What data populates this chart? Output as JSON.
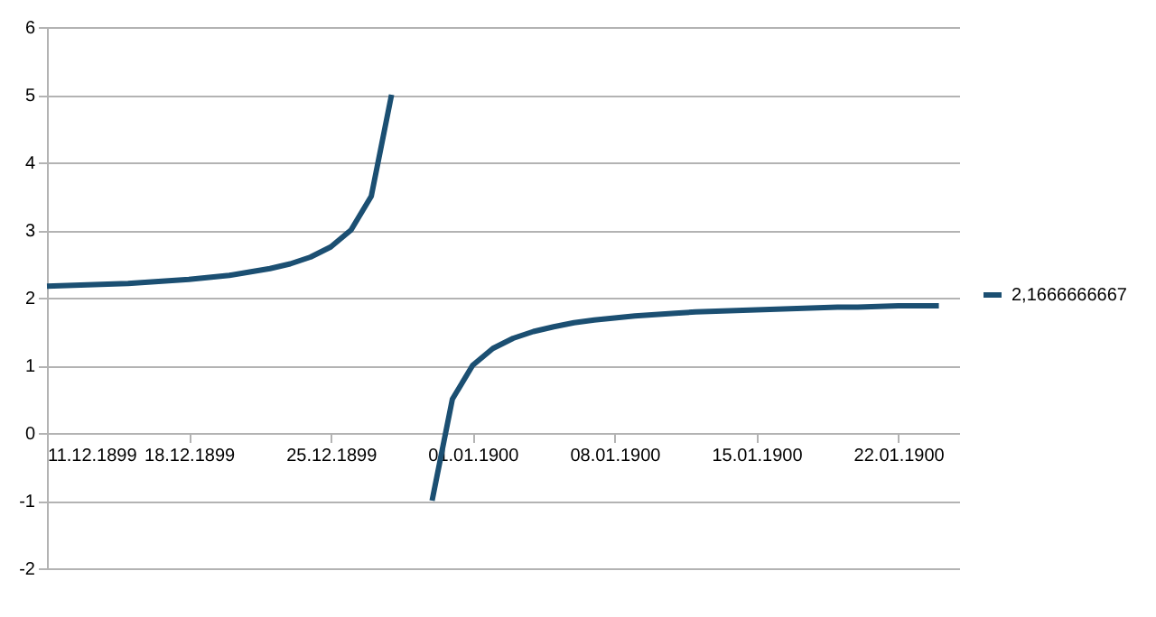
{
  "chart_data": {
    "type": "line",
    "x": [
      "1899-12-11",
      "1899-12-12",
      "1899-12-13",
      "1899-12-14",
      "1899-12-15",
      "1899-12-16",
      "1899-12-17",
      "1899-12-18",
      "1899-12-19",
      "1899-12-20",
      "1899-12-21",
      "1899-12-22",
      "1899-12-23",
      "1899-12-24",
      "1899-12-25",
      "1899-12-26",
      "1899-12-27",
      "1899-12-28",
      "1899-12-29",
      "1899-12-30",
      "1899-12-31",
      "1900-01-01",
      "1900-01-02",
      "1900-01-03",
      "1900-01-04",
      "1900-01-05",
      "1900-01-06",
      "1900-01-07",
      "1900-01-08",
      "1900-01-09",
      "1900-01-10",
      "1900-01-11",
      "1900-01-12",
      "1900-01-13",
      "1900-01-14",
      "1900-01-15",
      "1900-01-16",
      "1900-01-17",
      "1900-01-18",
      "1900-01-19",
      "1900-01-20",
      "1900-01-21",
      "1900-01-22",
      "1900-01-23",
      "1900-01-24"
    ],
    "series": [
      {
        "name": "2,1666666667",
        "color": "#1b4f72",
        "values": [
          2.17,
          2.18,
          2.19,
          2.2,
          2.21,
          2.23,
          2.25,
          2.27,
          2.3,
          2.33,
          2.38,
          2.43,
          2.5,
          2.6,
          2.75,
          3,
          3.5,
          5,
          null,
          -1,
          0.5,
          1,
          1.25,
          1.4,
          1.5,
          1.57,
          1.63,
          1.67,
          1.7,
          1.73,
          1.75,
          1.77,
          1.79,
          1.8,
          1.81,
          1.82,
          1.83,
          1.84,
          1.85,
          1.86,
          1.86,
          1.87,
          1.88,
          1.88,
          1.88
        ]
      }
    ],
    "xlim": [
      "1899-12-11",
      "1900-01-25"
    ],
    "xticks": [
      {
        "value": "1899-12-11",
        "label": "11.12.1899"
      },
      {
        "value": "1899-12-18",
        "label": "18.12.1899"
      },
      {
        "value": "1899-12-25",
        "label": "25.12.1899"
      },
      {
        "value": "1900-01-01",
        "label": "01.01.1900"
      },
      {
        "value": "1900-01-08",
        "label": "08.01.1900"
      },
      {
        "value": "1900-01-15",
        "label": "15.01.1900"
      },
      {
        "value": "1900-01-22",
        "label": "22.01.1900"
      }
    ],
    "ylim": [
      -2,
      6
    ],
    "yticks": [
      -2,
      -1,
      0,
      1,
      2,
      3,
      4,
      5,
      6
    ],
    "grid": "y",
    "legend": "right",
    "marker": "none",
    "line_style": "solid"
  }
}
